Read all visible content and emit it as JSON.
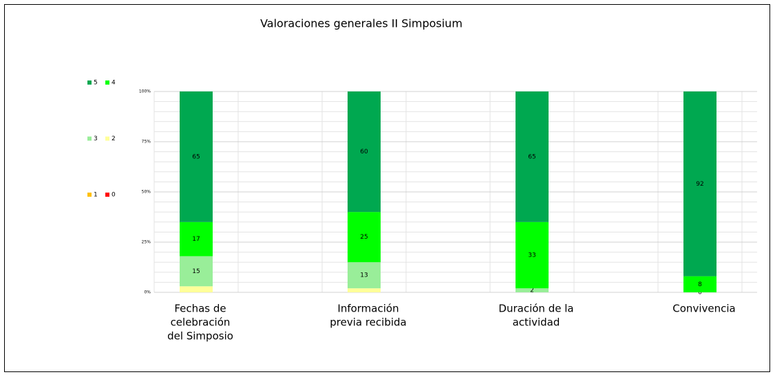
{
  "chart_data": {
    "type": "stacked_bar_100",
    "title": "Valoraciones generales   II Simposium",
    "categories": [
      [
        "Fechas de",
        "celebración",
        "del Simposio"
      ],
      [
        "Información",
        "previa recibida"
      ],
      [
        "Duración de la",
        "actividad"
      ],
      [
        "Convivencia"
      ]
    ],
    "series": [
      {
        "name": "0",
        "color": "#ff0000",
        "values": [
          0,
          0,
          0,
          0
        ],
        "value_labels": [
          null,
          null,
          null,
          null
        ]
      },
      {
        "name": "1",
        "color": "#ffc000",
        "values": [
          0,
          0,
          0,
          0
        ],
        "value_labels": [
          null,
          null,
          null,
          null
        ]
      },
      {
        "name": "2",
        "color": "#ffff99",
        "values": [
          3,
          2,
          0,
          0
        ],
        "value_labels": [
          null,
          null,
          null,
          null
        ]
      },
      {
        "name": "3",
        "color": "#99ee99",
        "values": [
          15,
          13,
          2,
          0
        ],
        "value_labels": [
          "15",
          "13",
          "2",
          "0"
        ]
      },
      {
        "name": "4",
        "color": "#00ff00",
        "values": [
          17,
          25,
          33,
          8
        ],
        "value_labels": [
          "17",
          "25",
          "33",
          "8"
        ]
      },
      {
        "name": "5",
        "color": "#00a850",
        "values": [
          65,
          60,
          65,
          92
        ],
        "value_labels": [
          "65",
          "60",
          "65",
          "92"
        ]
      }
    ],
    "legend_order": [
      5,
      4,
      3,
      2,
      1,
      0
    ],
    "legend": "left",
    "ylim": [
      0,
      100
    ],
    "yticks": [
      {
        "value": 0,
        "label": "0%"
      },
      {
        "value": 25,
        "label": "25%"
      },
      {
        "value": 50,
        "label": "50%"
      },
      {
        "value": 75,
        "label": "75%"
      },
      {
        "value": 100,
        "label": "100%"
      }
    ],
    "minor_yticks": [
      5,
      10,
      15,
      20,
      30,
      35,
      40,
      45,
      55,
      60,
      65,
      70,
      80,
      85,
      90,
      95
    ],
    "grid": true
  }
}
